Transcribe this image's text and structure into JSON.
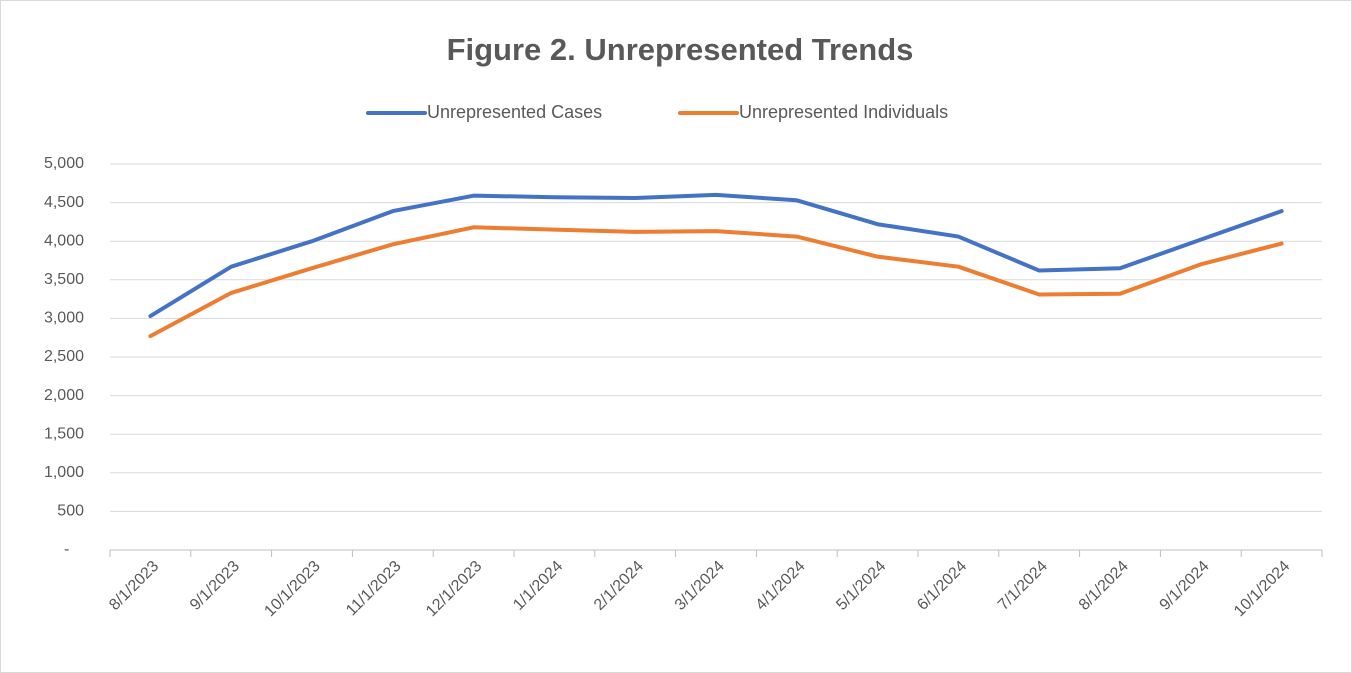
{
  "chart_data": {
    "type": "line",
    "title": "Figure 2. Unrepresented Trends",
    "categories": [
      "8/1/2023",
      "9/1/2023",
      "10/1/2023",
      "11/1/2023",
      "12/1/2023",
      "1/1/2024",
      "2/1/2024",
      "3/1/2024",
      "4/1/2024",
      "5/1/2024",
      "6/1/2024",
      "7/1/2024",
      "8/1/2024",
      "9/1/2024",
      "10/1/2024"
    ],
    "series": [
      {
        "name": "Unrepresented Cases",
        "color": "#4472c4",
        "values": [
          3030,
          3670,
          4000,
          4390,
          4590,
          4570,
          4560,
          4600,
          4530,
          4220,
          4060,
          3620,
          3650,
          4020,
          4390
        ]
      },
      {
        "name": "Unrepresented Individuals",
        "color": "#ed7d31",
        "values": [
          2770,
          3330,
          3650,
          3960,
          4180,
          4150,
          4120,
          4130,
          4060,
          3800,
          3670,
          3310,
          3320,
          3700,
          3970
        ]
      }
    ],
    "ylim": [
      0,
      5000
    ],
    "yticks": [
      {
        "value": 0,
        "label": "-"
      },
      500,
      {
        "value": 1000,
        "label": "1,000"
      },
      {
        "value": 1500,
        "label": "1,500"
      },
      {
        "value": 2000,
        "label": "2,000"
      },
      {
        "value": 2500,
        "label": "2,500"
      },
      {
        "value": 3000,
        "label": "3,000"
      },
      {
        "value": 3500,
        "label": "3,500"
      },
      {
        "value": 4000,
        "label": "4,000"
      },
      {
        "value": 4500,
        "label": "4,500"
      },
      {
        "value": 5000,
        "label": "5,000"
      }
    ],
    "grid": true,
    "legend": "top"
  }
}
